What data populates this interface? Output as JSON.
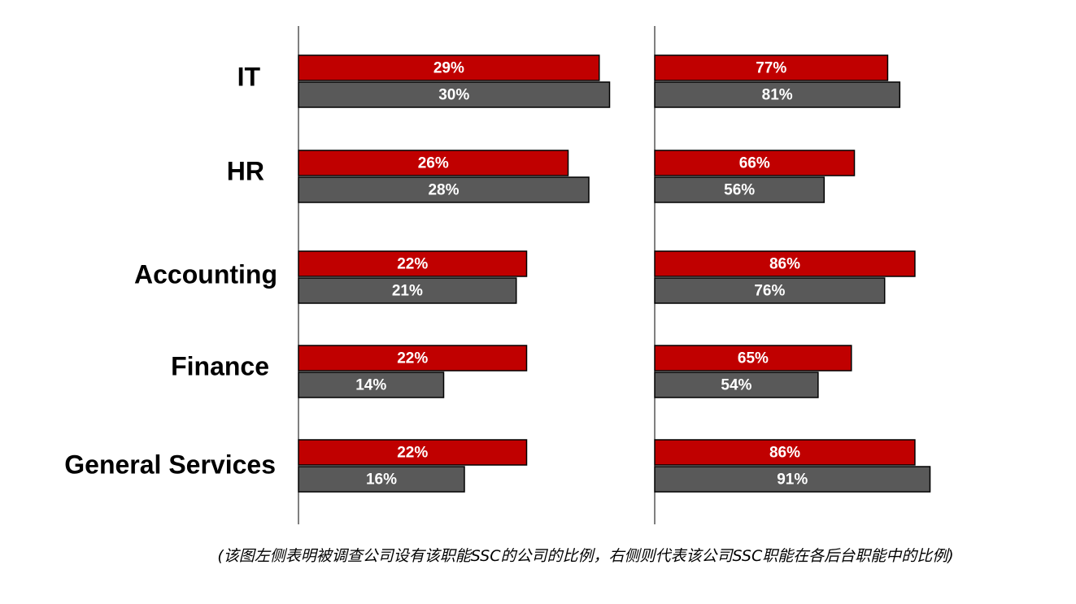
{
  "chart_data": [
    {
      "type": "bar",
      "orientation": "horizontal",
      "categories": [
        "IT",
        "HR",
        "Accounting",
        "Finance",
        "General Services"
      ],
      "series": [
        {
          "values": [
            29,
            26,
            22,
            22,
            22
          ],
          "color": "#c00000"
        },
        {
          "values": [
            30,
            28,
            21,
            14,
            16
          ],
          "color": "#595959"
        }
      ],
      "value_suffix": "%",
      "xlim": [
        0,
        100
      ],
      "grid": false,
      "legend": "none"
    },
    {
      "type": "bar",
      "orientation": "horizontal",
      "categories": [
        "IT",
        "HR",
        "Accounting",
        "Finance",
        "General Services"
      ],
      "series": [
        {
          "values": [
            77,
            66,
            86,
            65,
            86
          ],
          "color": "#c00000"
        },
        {
          "values": [
            81,
            56,
            76,
            54,
            91
          ],
          "color": "#595959"
        }
      ],
      "value_suffix": "%",
      "xlim": [
        0,
        100
      ],
      "grid": false,
      "legend": "none"
    }
  ],
  "caption": "(该图左侧表明被调查公司设有该职能SSC的公司的比例，右侧则代表该公司SSC职能在各后台职能中的比例)"
}
